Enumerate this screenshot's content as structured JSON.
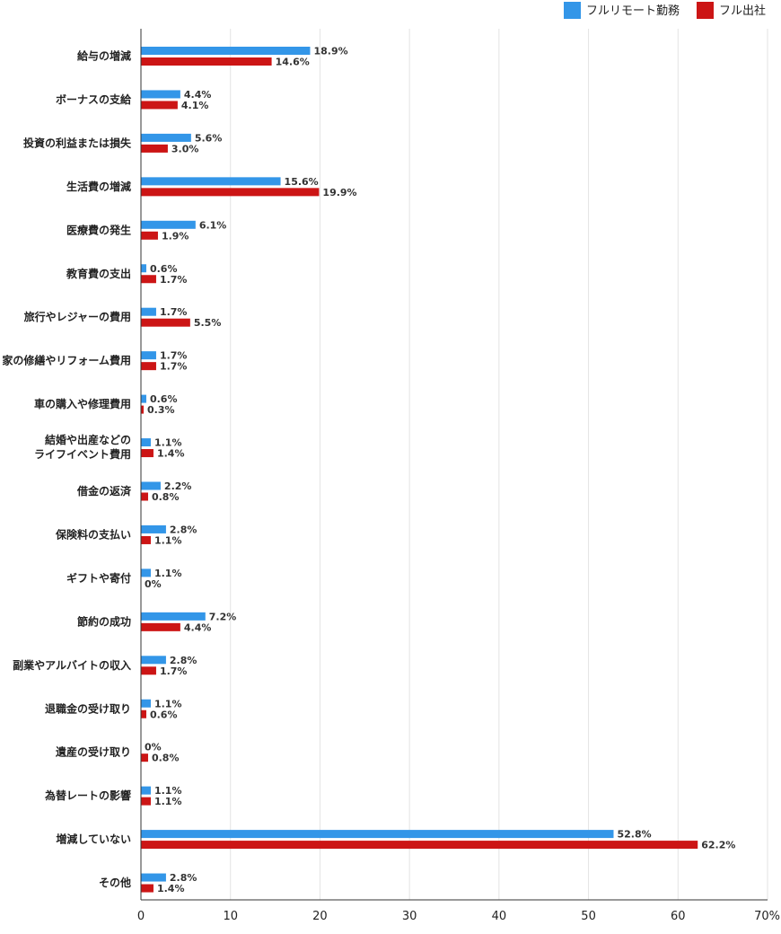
{
  "chart_data": {
    "type": "bar",
    "orientation": "horizontal",
    "categories": [
      "給与の増減",
      "ボーナスの支給",
      "投資の利益または損失",
      "生活費の増減",
      "医療費の発生",
      "教育費の支出",
      "旅行やレジャーの費用",
      "家の修繕やリフォーム費用",
      "車の購入や修理費用",
      "結婚や出産などの\nライフイベント費用",
      "借金の返済",
      "保険料の支払い",
      "ギフトや寄付",
      "節約の成功",
      "副業やアルバイトの収入",
      "退職金の受け取り",
      "遺産の受け取り",
      "為替レートの影響",
      "増減していない",
      "その他"
    ],
    "series": [
      {
        "name": "フルリモート勤務",
        "color": "#3396e8",
        "values": [
          18.9,
          4.4,
          5.6,
          15.6,
          6.1,
          0.6,
          1.7,
          1.7,
          0.6,
          1.1,
          2.2,
          2.8,
          1.1,
          7.2,
          2.8,
          1.1,
          0,
          1.1,
          52.8,
          2.8
        ],
        "labels": [
          "18.9%",
          "4.4%",
          "5.6%",
          "15.6%",
          "6.1%",
          "0.6%",
          "1.7%",
          "1.7%",
          "0.6%",
          "1.1%",
          "2.2%",
          "2.8%",
          "1.1%",
          "7.2%",
          "2.8%",
          "1.1%",
          "0%",
          "1.1%",
          "52.8%",
          "2.8%"
        ]
      },
      {
        "name": "フル出社",
        "color": "#cc1515",
        "values": [
          14.6,
          4.1,
          3.0,
          19.9,
          1.9,
          1.7,
          5.5,
          1.7,
          0.3,
          1.4,
          0.8,
          1.1,
          0,
          4.4,
          1.7,
          0.6,
          0.8,
          1.1,
          62.2,
          1.4
        ],
        "labels": [
          "14.6%",
          "4.1%",
          "3.0%",
          "19.9%",
          "1.9%",
          "1.7%",
          "5.5%",
          "1.7%",
          "0.3%",
          "1.4%",
          "0.8%",
          "1.1%",
          "0%",
          "4.4%",
          "1.7%",
          "0.6%",
          "0.8%",
          "1.1%",
          "62.2%",
          "1.4%"
        ]
      }
    ],
    "xlim": [
      0,
      70
    ],
    "xticks": [
      "0",
      "10",
      "20",
      "30",
      "40",
      "50",
      "60",
      "70%"
    ],
    "legend_position": "top-right",
    "grid": true
  }
}
